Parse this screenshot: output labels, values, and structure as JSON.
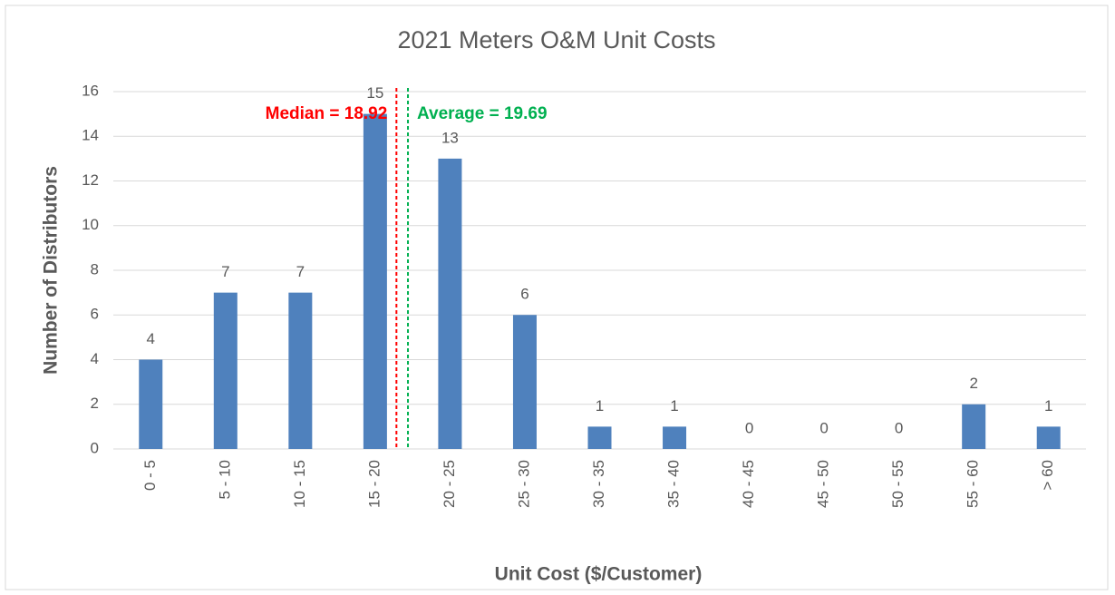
{
  "chart_data": {
    "type": "bar",
    "title": "2021 Meters O&M Unit Costs",
    "x_label": "Unit Cost ($/Customer)",
    "y_label": "Number of Distributors",
    "categories": [
      "0 - 5",
      "5 - 10",
      "10 - 15",
      "15 - 20",
      "20 - 25",
      "25 - 30",
      "30 - 35",
      "35 - 40",
      "40 - 45",
      "45 - 50",
      "50 - 55",
      "55 - 60",
      "> 60"
    ],
    "values": [
      4,
      7,
      7,
      15,
      13,
      6,
      1,
      1,
      0,
      0,
      0,
      2,
      1
    ],
    "color": "#4f81bd",
    "ylim": [
      0,
      16
    ],
    "yticks": [
      0,
      2,
      4,
      6,
      8,
      10,
      12,
      14,
      16
    ],
    "grid": true,
    "annotations": [
      {
        "label": "Median = 18.92",
        "value": 18.92,
        "color": "#ff0000"
      },
      {
        "label": "Average = 19.69",
        "value": 19.69,
        "color": "#00b050"
      }
    ]
  }
}
